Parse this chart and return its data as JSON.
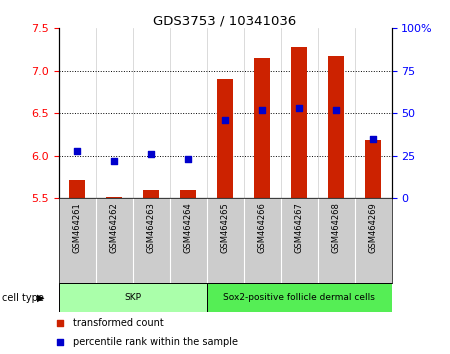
{
  "title": "GDS3753 / 10341036",
  "samples": [
    "GSM464261",
    "GSM464262",
    "GSM464263",
    "GSM464264",
    "GSM464265",
    "GSM464266",
    "GSM464267",
    "GSM464268",
    "GSM464269"
  ],
  "transformed_count": [
    5.72,
    5.52,
    5.6,
    5.6,
    6.9,
    7.15,
    7.28,
    7.18,
    6.18
  ],
  "percentile_rank": [
    28,
    22,
    26,
    23,
    46,
    52,
    53,
    52,
    35
  ],
  "left_ylim": [
    5.5,
    7.5
  ],
  "right_ylim": [
    0,
    100
  ],
  "left_yticks": [
    5.5,
    6.0,
    6.5,
    7.0,
    7.5
  ],
  "right_yticks": [
    0,
    25,
    50,
    75,
    100
  ],
  "right_yticklabels": [
    "0",
    "25",
    "50",
    "75",
    "100%"
  ],
  "cell_groups": [
    {
      "label": "SKP",
      "start": 0,
      "end": 4,
      "color": "#aaffaa"
    },
    {
      "label": "Sox2-positive follicle dermal cells",
      "start": 4,
      "end": 9,
      "color": "#55ee55"
    }
  ],
  "bar_color": "#cc2200",
  "dot_color": "#0000cc",
  "bar_width": 0.45,
  "dot_size": 25,
  "label_transformed": "transformed count",
  "label_percentile": "percentile rank within the sample",
  "cell_type_label": "cell type",
  "sample_bg": "#cccccc",
  "grid_yticks": [
    6.0,
    6.5,
    7.0
  ]
}
